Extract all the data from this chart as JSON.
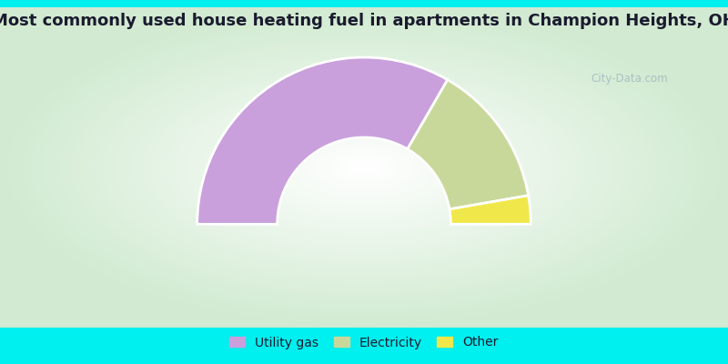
{
  "title": "Most commonly used house heating fuel in apartments in Champion Heights, OH",
  "segments": [
    {
      "label": "Utility gas",
      "value": 66.7,
      "color": "#c9a0dc"
    },
    {
      "label": "Electricity",
      "value": 27.8,
      "color": "#c8d89a"
    },
    {
      "label": "Other",
      "value": 5.5,
      "color": "#f0e84a"
    }
  ],
  "bg_color": "#00efef",
  "title_color": "#1a1a2e",
  "title_fontsize": 13,
  "legend_fontsize": 10,
  "watermark": "City-Data.com",
  "legend_marker_color_utility": "#cc88dd",
  "legend_marker_color_elec": "#b8cc88",
  "legend_marker_color_other": "#e8e044"
}
